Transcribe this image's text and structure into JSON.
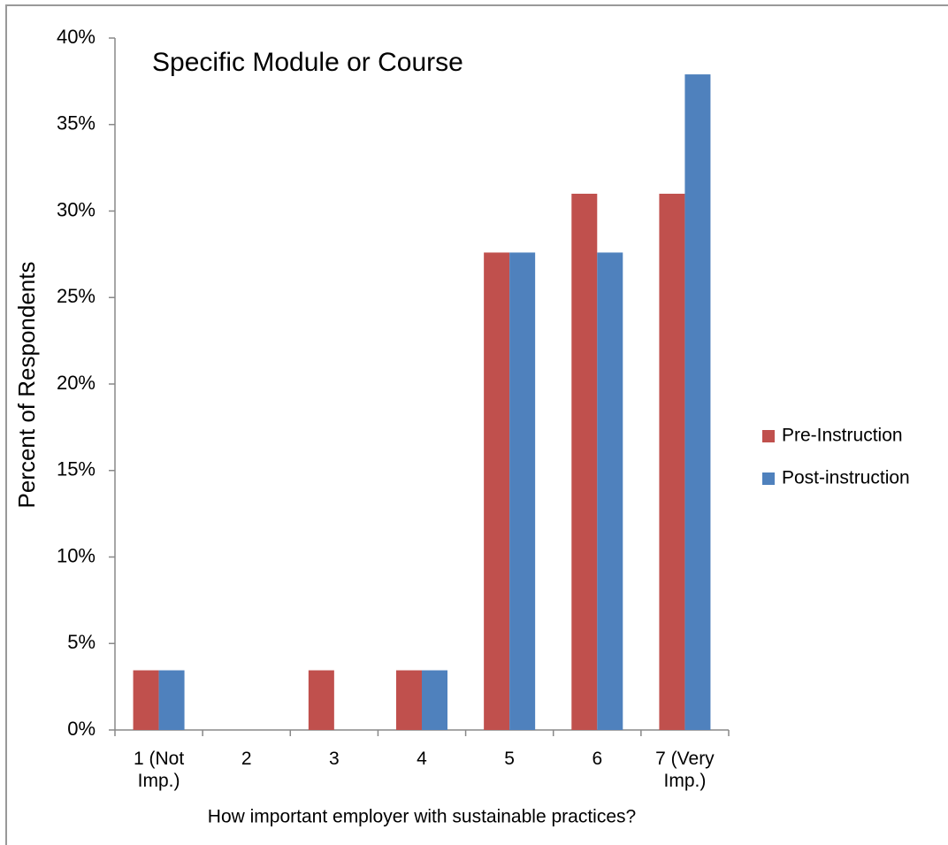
{
  "chart_data": {
    "type": "bar",
    "title": "Specific Module or Course",
    "x_label": "How important employer with sustainable practices?",
    "y_label": "Percent of Respondents",
    "categories": [
      "1 (Not Imp.)",
      "2",
      "3",
      "4",
      "5",
      "6",
      "7 (Very Imp.)"
    ],
    "series": [
      {
        "name": "Pre-Instruction",
        "color": "#c0504d",
        "values": [
          3.45,
          0,
          3.45,
          3.45,
          27.6,
          31.0,
          31.0
        ]
      },
      {
        "name": "Post-instruction",
        "color": "#4f81bd",
        "values": [
          3.45,
          0,
          0,
          3.45,
          27.6,
          27.6,
          37.9
        ]
      }
    ],
    "ylim": [
      0,
      40
    ],
    "yticks": [
      {
        "value": 0,
        "label": "0%"
      },
      {
        "value": 5,
        "label": "5%"
      },
      {
        "value": 10,
        "label": "10%"
      },
      {
        "value": 15,
        "label": "15%"
      },
      {
        "value": 20,
        "label": "20%"
      },
      {
        "value": 25,
        "label": "25%"
      },
      {
        "value": 30,
        "label": "30%"
      },
      {
        "value": 35,
        "label": "35%"
      },
      {
        "value": 40,
        "label": "40%"
      }
    ],
    "grid": false,
    "legend": "right"
  }
}
